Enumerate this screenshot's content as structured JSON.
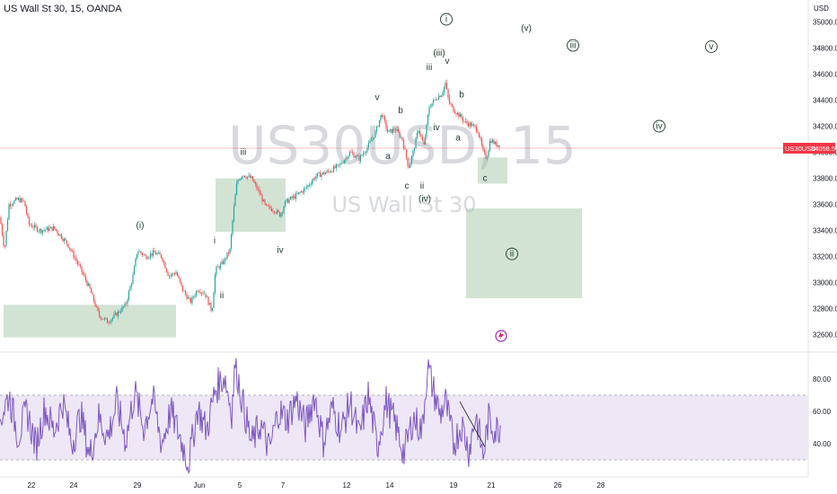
{
  "header": {
    "title": "US Wall St 30, 15, OANDA"
  },
  "watermark": {
    "symbol": "US30USD, 15",
    "name": "US Wall St 30"
  },
  "price_axis": {
    "unit_label": "USD",
    "ticks": [
      "35000.0",
      "34800.0",
      "34600.0",
      "34400.0",
      "34200.0",
      "34000.0",
      "33800.0",
      "33600.0",
      "33400.0",
      "33200.0",
      "33000.0",
      "32800.0",
      "32600.0"
    ]
  },
  "rsi_axis": {
    "ticks": [
      "80.00",
      "60.00",
      "40.00"
    ]
  },
  "time_axis": {
    "ticks": [
      "22",
      "24",
      "29",
      "Jun",
      "5",
      "7",
      "12",
      "14",
      "19",
      "21",
      "26",
      "28"
    ]
  },
  "last_price": {
    "symbol": "US30USD",
    "value": "34058.5",
    "color": "#f23645"
  },
  "colors": {
    "zone": "#a5c8a9",
    "candle_up": "#26a69a",
    "candle_down": "#ef5350",
    "rsi": "#7e57c2",
    "rsi_band": "#ede7f6"
  },
  "chart_data": {
    "type": "candlestick-with-rsi",
    "title": "US Wall St 30, 15, OANDA",
    "price_range": [
      32550,
      35100
    ],
    "rsi_range": [
      20,
      95
    ],
    "rsi_band": [
      30,
      70
    ],
    "price_path": [
      {
        "x": 0,
        "p": 33500
      },
      {
        "x": 5,
        "p": 33250
      },
      {
        "x": 10,
        "p": 33600
      },
      {
        "x": 20,
        "p": 33640
      },
      {
        "x": 27,
        "p": 33620
      },
      {
        "x": 32,
        "p": 33450
      },
      {
        "x": 45,
        "p": 33400
      },
      {
        "x": 60,
        "p": 33420
      },
      {
        "x": 75,
        "p": 33300
      },
      {
        "x": 90,
        "p": 33100
      },
      {
        "x": 100,
        "p": 32950
      },
      {
        "x": 110,
        "p": 32750
      },
      {
        "x": 120,
        "p": 32700
      },
      {
        "x": 130,
        "p": 32760
      },
      {
        "x": 140,
        "p": 32830
      },
      {
        "x": 148,
        "p": 33050
      },
      {
        "x": 153,
        "p": 33250
      },
      {
        "x": 162,
        "p": 33200
      },
      {
        "x": 172,
        "p": 33230
      },
      {
        "x": 180,
        "p": 33200
      },
      {
        "x": 188,
        "p": 33050
      },
      {
        "x": 196,
        "p": 33080
      },
      {
        "x": 203,
        "p": 32950
      },
      {
        "x": 212,
        "p": 32850
      },
      {
        "x": 220,
        "p": 32950
      },
      {
        "x": 228,
        "p": 32920
      },
      {
        "x": 236,
        "p": 32780
      },
      {
        "x": 240,
        "p": 33100
      },
      {
        "x": 248,
        "p": 33150
      },
      {
        "x": 256,
        "p": 33250
      },
      {
        "x": 260,
        "p": 33550
      },
      {
        "x": 264,
        "p": 33780
      },
      {
        "x": 270,
        "p": 33830
      },
      {
        "x": 280,
        "p": 33800
      },
      {
        "x": 288,
        "p": 33700
      },
      {
        "x": 296,
        "p": 33580
      },
      {
        "x": 305,
        "p": 33560
      },
      {
        "x": 312,
        "p": 33520
      },
      {
        "x": 318,
        "p": 33620
      },
      {
        "x": 328,
        "p": 33660
      },
      {
        "x": 340,
        "p": 33720
      },
      {
        "x": 352,
        "p": 33820
      },
      {
        "x": 365,
        "p": 33850
      },
      {
        "x": 378,
        "p": 33900
      },
      {
        "x": 390,
        "p": 34000
      },
      {
        "x": 400,
        "p": 33950
      },
      {
        "x": 410,
        "p": 34050
      },
      {
        "x": 418,
        "p": 34150
      },
      {
        "x": 425,
        "p": 34300
      },
      {
        "x": 432,
        "p": 34150
      },
      {
        "x": 440,
        "p": 34180
      },
      {
        "x": 448,
        "p": 34100
      },
      {
        "x": 455,
        "p": 33880
      },
      {
        "x": 460,
        "p": 34000
      },
      {
        "x": 466,
        "p": 34180
      },
      {
        "x": 472,
        "p": 34050
      },
      {
        "x": 478,
        "p": 34350
      },
      {
        "x": 486,
        "p": 34420
      },
      {
        "x": 492,
        "p": 34450
      },
      {
        "x": 496,
        "p": 34530
      },
      {
        "x": 500,
        "p": 34380
      },
      {
        "x": 506,
        "p": 34320
      },
      {
        "x": 512,
        "p": 34280
      },
      {
        "x": 518,
        "p": 34230
      },
      {
        "x": 525,
        "p": 34210
      },
      {
        "x": 532,
        "p": 34170
      },
      {
        "x": 538,
        "p": 34000
      },
      {
        "x": 542,
        "p": 33960
      },
      {
        "x": 546,
        "p": 34100
      },
      {
        "x": 552,
        "p": 34060
      },
      {
        "x": 556,
        "p": 34058
      }
    ],
    "rsi_path": [
      {
        "x": 0,
        "v": 55
      },
      {
        "x": 10,
        "v": 70
      },
      {
        "x": 20,
        "v": 45
      },
      {
        "x": 30,
        "v": 60
      },
      {
        "x": 40,
        "v": 38
      },
      {
        "x": 50,
        "v": 62
      },
      {
        "x": 60,
        "v": 48
      },
      {
        "x": 70,
        "v": 66
      },
      {
        "x": 80,
        "v": 40
      },
      {
        "x": 90,
        "v": 58
      },
      {
        "x": 100,
        "v": 32
      },
      {
        "x": 110,
        "v": 56
      },
      {
        "x": 120,
        "v": 44
      },
      {
        "x": 130,
        "v": 65
      },
      {
        "x": 140,
        "v": 42
      },
      {
        "x": 150,
        "v": 72
      },
      {
        "x": 160,
        "v": 50
      },
      {
        "x": 170,
        "v": 68
      },
      {
        "x": 180,
        "v": 40
      },
      {
        "x": 190,
        "v": 60
      },
      {
        "x": 200,
        "v": 45
      },
      {
        "x": 210,
        "v": 28
      },
      {
        "x": 220,
        "v": 62
      },
      {
        "x": 230,
        "v": 48
      },
      {
        "x": 240,
        "v": 74
      },
      {
        "x": 250,
        "v": 82
      },
      {
        "x": 258,
        "v": 60
      },
      {
        "x": 262,
        "v": 90
      },
      {
        "x": 270,
        "v": 66
      },
      {
        "x": 280,
        "v": 40
      },
      {
        "x": 290,
        "v": 52
      },
      {
        "x": 300,
        "v": 36
      },
      {
        "x": 310,
        "v": 60
      },
      {
        "x": 320,
        "v": 55
      },
      {
        "x": 330,
        "v": 68
      },
      {
        "x": 340,
        "v": 50
      },
      {
        "x": 350,
        "v": 70
      },
      {
        "x": 360,
        "v": 42
      },
      {
        "x": 370,
        "v": 62
      },
      {
        "x": 380,
        "v": 48
      },
      {
        "x": 390,
        "v": 66
      },
      {
        "x": 400,
        "v": 44
      },
      {
        "x": 410,
        "v": 70
      },
      {
        "x": 420,
        "v": 38
      },
      {
        "x": 430,
        "v": 66
      },
      {
        "x": 440,
        "v": 52
      },
      {
        "x": 450,
        "v": 34
      },
      {
        "x": 460,
        "v": 56
      },
      {
        "x": 470,
        "v": 48
      },
      {
        "x": 476,
        "v": 88
      },
      {
        "x": 484,
        "v": 70
      },
      {
        "x": 490,
        "v": 58
      },
      {
        "x": 496,
        "v": 66
      },
      {
        "x": 505,
        "v": 40
      },
      {
        "x": 514,
        "v": 52
      },
      {
        "x": 522,
        "v": 36
      },
      {
        "x": 530,
        "v": 58
      },
      {
        "x": 538,
        "v": 32
      },
      {
        "x": 544,
        "v": 55
      },
      {
        "x": 552,
        "v": 48
      },
      {
        "x": 558,
        "v": 52
      }
    ],
    "zones": [
      {
        "x0": 4,
        "x1": 196,
        "p_top": 32830,
        "p_bottom": 32580
      },
      {
        "x0": 240,
        "x1": 318,
        "p_top": 33800,
        "p_bottom": 33390
      },
      {
        "x0": 532,
        "x1": 565,
        "p_top": 33960,
        "p_bottom": 33760
      },
      {
        "x0": 519,
        "x1": 648,
        "p_top": 33570,
        "p_bottom": 32880
      }
    ],
    "rsi_trendline": {
      "x0": 512,
      "x1": 540,
      "v0": 66,
      "v1": 38
    },
    "wave_labels": [
      {
        "text": "(i)",
        "x": 156,
        "p": 33420,
        "circled": false
      },
      {
        "text": "i",
        "x": 239,
        "p": 33300,
        "circled": false
      },
      {
        "text": "ii",
        "x": 247,
        "p": 32880,
        "circled": false
      },
      {
        "text": "iii",
        "x": 271,
        "p": 33980,
        "circled": false
      },
      {
        "text": "iv",
        "x": 312,
        "p": 33230,
        "circled": false
      },
      {
        "text": "v",
        "x": 420,
        "p": 34400,
        "circled": false
      },
      {
        "text": "a",
        "x": 432,
        "p": 33950,
        "circled": false
      },
      {
        "text": "b",
        "x": 446,
        "p": 34300,
        "circled": false
      },
      {
        "text": "c",
        "x": 453,
        "p": 33720,
        "circled": false
      },
      {
        "text": "ii",
        "x": 470,
        "p": 33720,
        "circled": false
      },
      {
        "text": "(iv)",
        "x": 473,
        "p": 33620,
        "circled": false
      },
      {
        "text": "iv",
        "x": 486,
        "p": 34170,
        "circled": false
      },
      {
        "text": "iii",
        "x": 478,
        "p": 34630,
        "circled": false
      },
      {
        "text": "(iii)",
        "x": 489,
        "p": 34740,
        "circled": false
      },
      {
        "text": "v",
        "x": 498,
        "p": 34680,
        "circled": false
      },
      {
        "text": "b",
        "x": 514,
        "p": 34420,
        "circled": false
      },
      {
        "text": "a",
        "x": 510,
        "p": 34090,
        "circled": false
      },
      {
        "text": "c",
        "x": 540,
        "p": 33780,
        "circled": false
      },
      {
        "text": "(v)",
        "x": 586,
        "p": 34930,
        "circled": false
      },
      {
        "text": "i",
        "x": 497,
        "p": 35000,
        "circled": true
      },
      {
        "text": "iii",
        "x": 638,
        "p": 34800,
        "circled": true
      },
      {
        "text": "v",
        "x": 792,
        "p": 34790,
        "circled": true
      },
      {
        "text": "iv",
        "x": 734,
        "p": 34180,
        "circled": true
      },
      {
        "text": "ii",
        "x": 570,
        "p": 33200,
        "circled": true
      }
    ]
  }
}
